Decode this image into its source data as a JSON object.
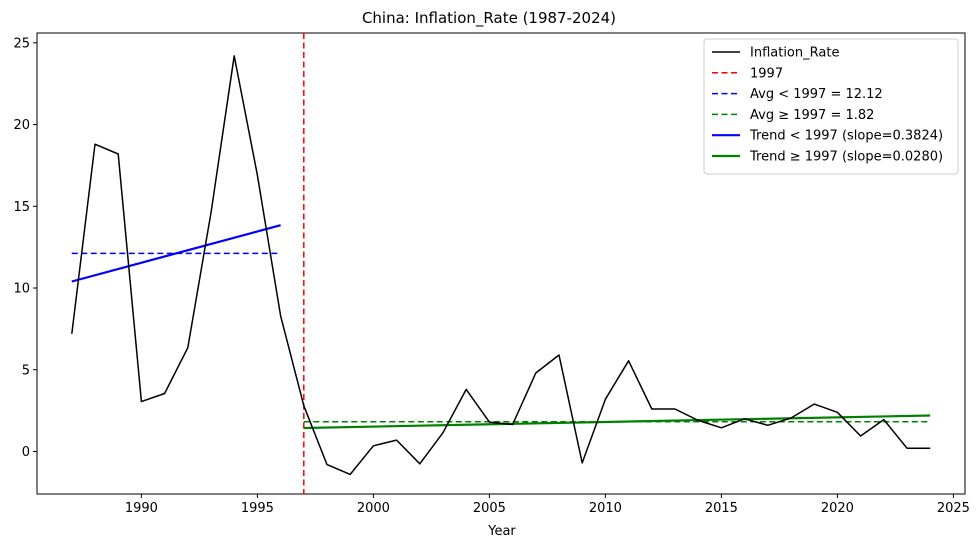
{
  "chart_data": {
    "type": "line",
    "title": "China: Inflation_Rate (1987-2024)",
    "xlabel": "Year",
    "ylabel": "",
    "xlim": [
      1985.5,
      2025.5
    ],
    "ylim": [
      -2.6,
      25.6
    ],
    "xticks": [
      1990,
      1995,
      2000,
      2005,
      2010,
      2015,
      2020,
      2025
    ],
    "yticks": [
      0,
      5,
      10,
      15,
      20,
      25
    ],
    "grid": false,
    "legend_position": "top-right",
    "series": [
      {
        "name": "Inflation_Rate",
        "style": "solid",
        "color": "#000000",
        "x": [
          1987,
          1988,
          1989,
          1990,
          1991,
          1992,
          1993,
          1994,
          1995,
          1996,
          1997,
          1998,
          1999,
          2000,
          2001,
          2002,
          2003,
          2004,
          2005,
          2006,
          2007,
          2008,
          2009,
          2010,
          2011,
          2012,
          2013,
          2014,
          2015,
          2016,
          2017,
          2018,
          2019,
          2020,
          2021,
          2022,
          2023,
          2024
        ],
        "values": [
          7.2,
          18.8,
          18.2,
          3.05,
          3.55,
          6.35,
          14.6,
          24.2,
          16.9,
          8.3,
          2.8,
          -0.8,
          -1.4,
          0.35,
          0.7,
          -0.75,
          1.15,
          3.8,
          1.8,
          1.65,
          4.8,
          5.9,
          -0.7,
          3.2,
          5.55,
          2.6,
          2.6,
          1.9,
          1.45,
          2.0,
          1.6,
          2.05,
          2.9,
          2.4,
          0.95,
          1.95,
          0.2,
          0.2
        ]
      },
      {
        "name": "1997",
        "style": "dashed",
        "color": "#ff0000",
        "orientation": "vertical",
        "x_value": 1997
      },
      {
        "name": "Avg < 1997 = 12.12",
        "style": "dashed",
        "color": "#0000ff",
        "x": [
          1987,
          1996
        ],
        "values": [
          12.12,
          12.12
        ]
      },
      {
        "name": "Avg ≥ 1997 = 1.82",
        "style": "dashed",
        "color": "#008000",
        "x": [
          1997,
          2024
        ],
        "values": [
          1.82,
          1.82
        ]
      },
      {
        "name": "Trend < 1997 (slope=0.3824)",
        "style": "solid-thick",
        "color": "#0000ff",
        "x": [
          1987,
          1996
        ],
        "values": [
          10.4,
          13.84
        ]
      },
      {
        "name": "Trend ≥ 1997 (slope=0.0280)",
        "style": "solid-thick",
        "color": "#008000",
        "x": [
          1997,
          2024
        ],
        "values": [
          1.44,
          2.2
        ]
      }
    ]
  }
}
